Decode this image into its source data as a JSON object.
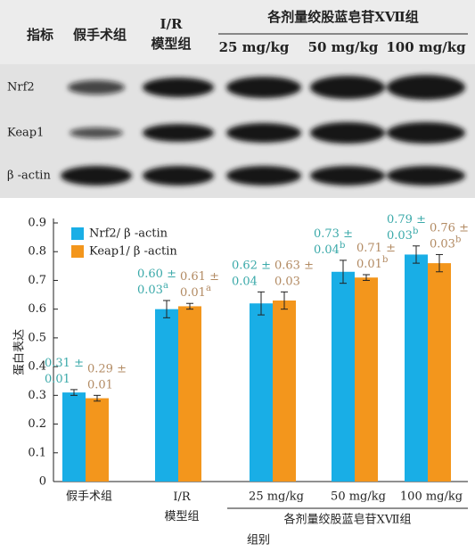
{
  "blot": {
    "header": [
      "指标",
      "假手术组",
      "I/R\n模型组"
    ],
    "group": "各剂量绞股蓝皂苷ⅩⅦ组",
    "doses": [
      "25 mg/kg",
      "50 mg/kg",
      "100 mg/kg"
    ],
    "rows": [
      "Nrf2",
      "Keap1",
      "β -actin"
    ]
  },
  "chart_data": {
    "type": "bar",
    "y_label": "蛋白表达",
    "x_label": "组别",
    "group_label": "各剂量绞股蓝皂苷ⅩⅦ组",
    "categories": [
      "假手术组",
      "I/R\n模型组",
      "25 mg/kg",
      "50 mg/kg",
      "100 mg/kg"
    ],
    "series": [
      {
        "name": "Nrf2/ β -actin",
        "color": "#19aee6",
        "label_color": "#3aa9a9",
        "values": [
          0.31,
          0.6,
          0.62,
          0.73,
          0.79
        ],
        "errors": [
          0.01,
          0.03,
          0.04,
          0.04,
          0.03
        ],
        "value_labels": [
          "0.31 ±0.01",
          "0.60 ±0.03a",
          "0.62 ±0.04",
          "0.73 ±0.04b",
          "0.79 ±0.03b"
        ]
      },
      {
        "name": "Keap1/ β -actin",
        "color": "#f3961c",
        "label_color": "#b28a62",
        "values": [
          0.29,
          0.61,
          0.63,
          0.71,
          0.76
        ],
        "errors": [
          0.01,
          0.01,
          0.03,
          0.01,
          0.03
        ],
        "value_labels": [
          "0.29 ±0.01",
          "0.61 ±0.01a",
          "0.63 ±0.03",
          "0.71 ±0.01b",
          "0.76 ±0.03b"
        ]
      }
    ],
    "ylim": [
      0,
      0.9
    ],
    "yticks": [
      0,
      0.1,
      0.2,
      0.3,
      0.4,
      0.5,
      0.6,
      0.7,
      0.8,
      0.9
    ],
    "legend": "top-left"
  }
}
